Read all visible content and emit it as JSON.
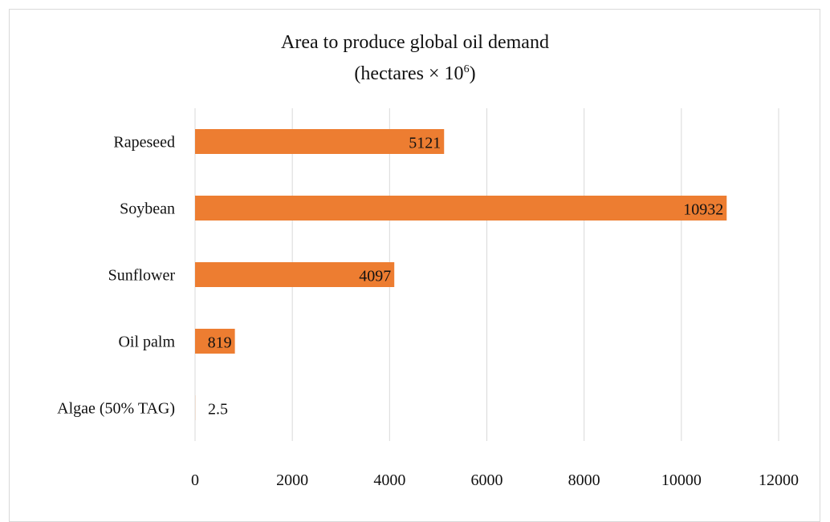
{
  "chart_data": {
    "type": "bar",
    "orientation": "horizontal",
    "title_line1": "Area to produce global oil demand",
    "title_line2_prefix": "(hectares × 10",
    "title_line2_sup": "6",
    "title_line2_suffix": ")",
    "categories": [
      "Rapeseed",
      "Soybean",
      "Sunflower",
      "Oil palm",
      "Algae (50% TAG)"
    ],
    "values": [
      5121,
      10932,
      4097,
      819,
      2.5
    ],
    "data_labels": [
      "5121",
      "10932",
      "4097",
      "819",
      "2.5"
    ],
    "xticks": [
      "0",
      "2000",
      "4000",
      "6000",
      "8000",
      "10000",
      "12000"
    ],
    "xlim": [
      0,
      12000
    ],
    "grid": "vertical",
    "bar_color": "#ed7d31",
    "grid_color": "#d9d9d9"
  }
}
